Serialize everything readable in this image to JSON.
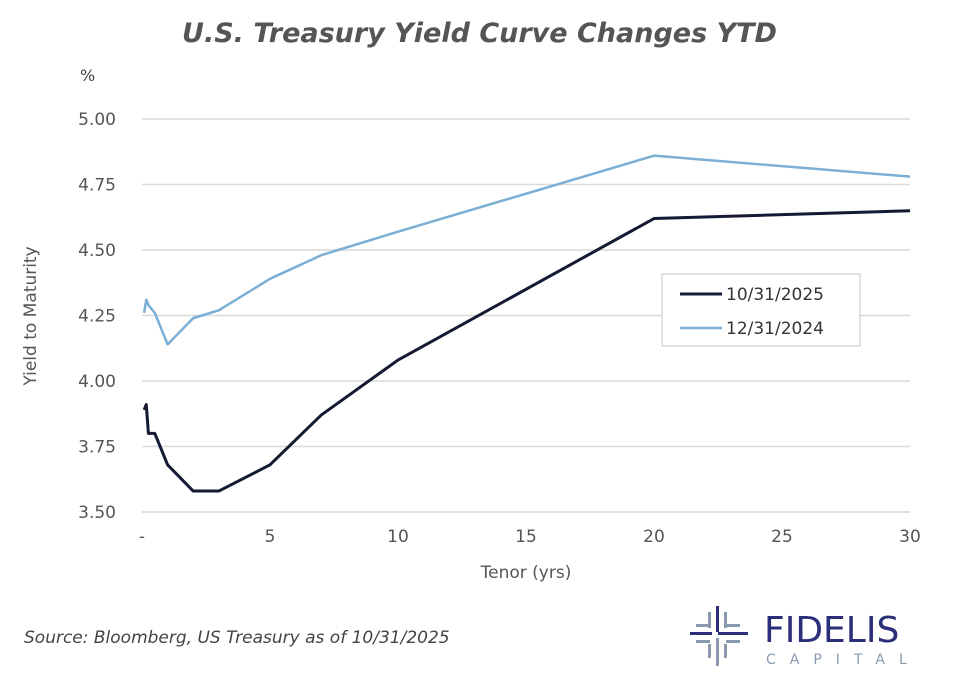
{
  "chart_data": {
    "type": "line",
    "title": "U.S. Treasury Yield Curve Changes YTD",
    "unit_label": "%",
    "xlabel": "Tenor (yrs)",
    "ylabel": "Yield to Maturity",
    "xlim": [
      0,
      30
    ],
    "ylim": [
      3.5,
      5.0
    ],
    "x_ticks": [
      0,
      5,
      10,
      15,
      20,
      25,
      30
    ],
    "x_tick_labels": [
      "-",
      "5",
      "10",
      "15",
      "20",
      "25",
      "30"
    ],
    "y_ticks": [
      3.5,
      3.75,
      4.0,
      4.25,
      4.5,
      4.75,
      5.0
    ],
    "y_tick_labels": [
      "3.50",
      "3.75",
      "4.00",
      "4.25",
      "4.50",
      "4.75",
      "5.00"
    ],
    "grid": "horizontal",
    "legend_position": "right-middle",
    "x": [
      0.083,
      0.167,
      0.25,
      0.5,
      1,
      2,
      3,
      5,
      7,
      10,
      20,
      30
    ],
    "series": [
      {
        "name": "10/31/2025",
        "color": "#141a33",
        "values": [
          3.89,
          3.91,
          3.8,
          3.8,
          3.68,
          3.58,
          3.58,
          3.68,
          3.87,
          4.08,
          4.62,
          4.65
        ]
      },
      {
        "name": "12/31/2024",
        "color": "#7bafd6",
        "values": [
          4.26,
          4.31,
          4.29,
          4.26,
          4.14,
          4.24,
          4.27,
          4.39,
          4.48,
          4.57,
          4.86,
          4.78
        ]
      }
    ]
  },
  "source": "Source: Bloomberg, US Treasury as of 10/31/2025",
  "logo": {
    "name": "FIDELIS",
    "sub": "CAPITAL",
    "color": "#2b2f7a"
  }
}
